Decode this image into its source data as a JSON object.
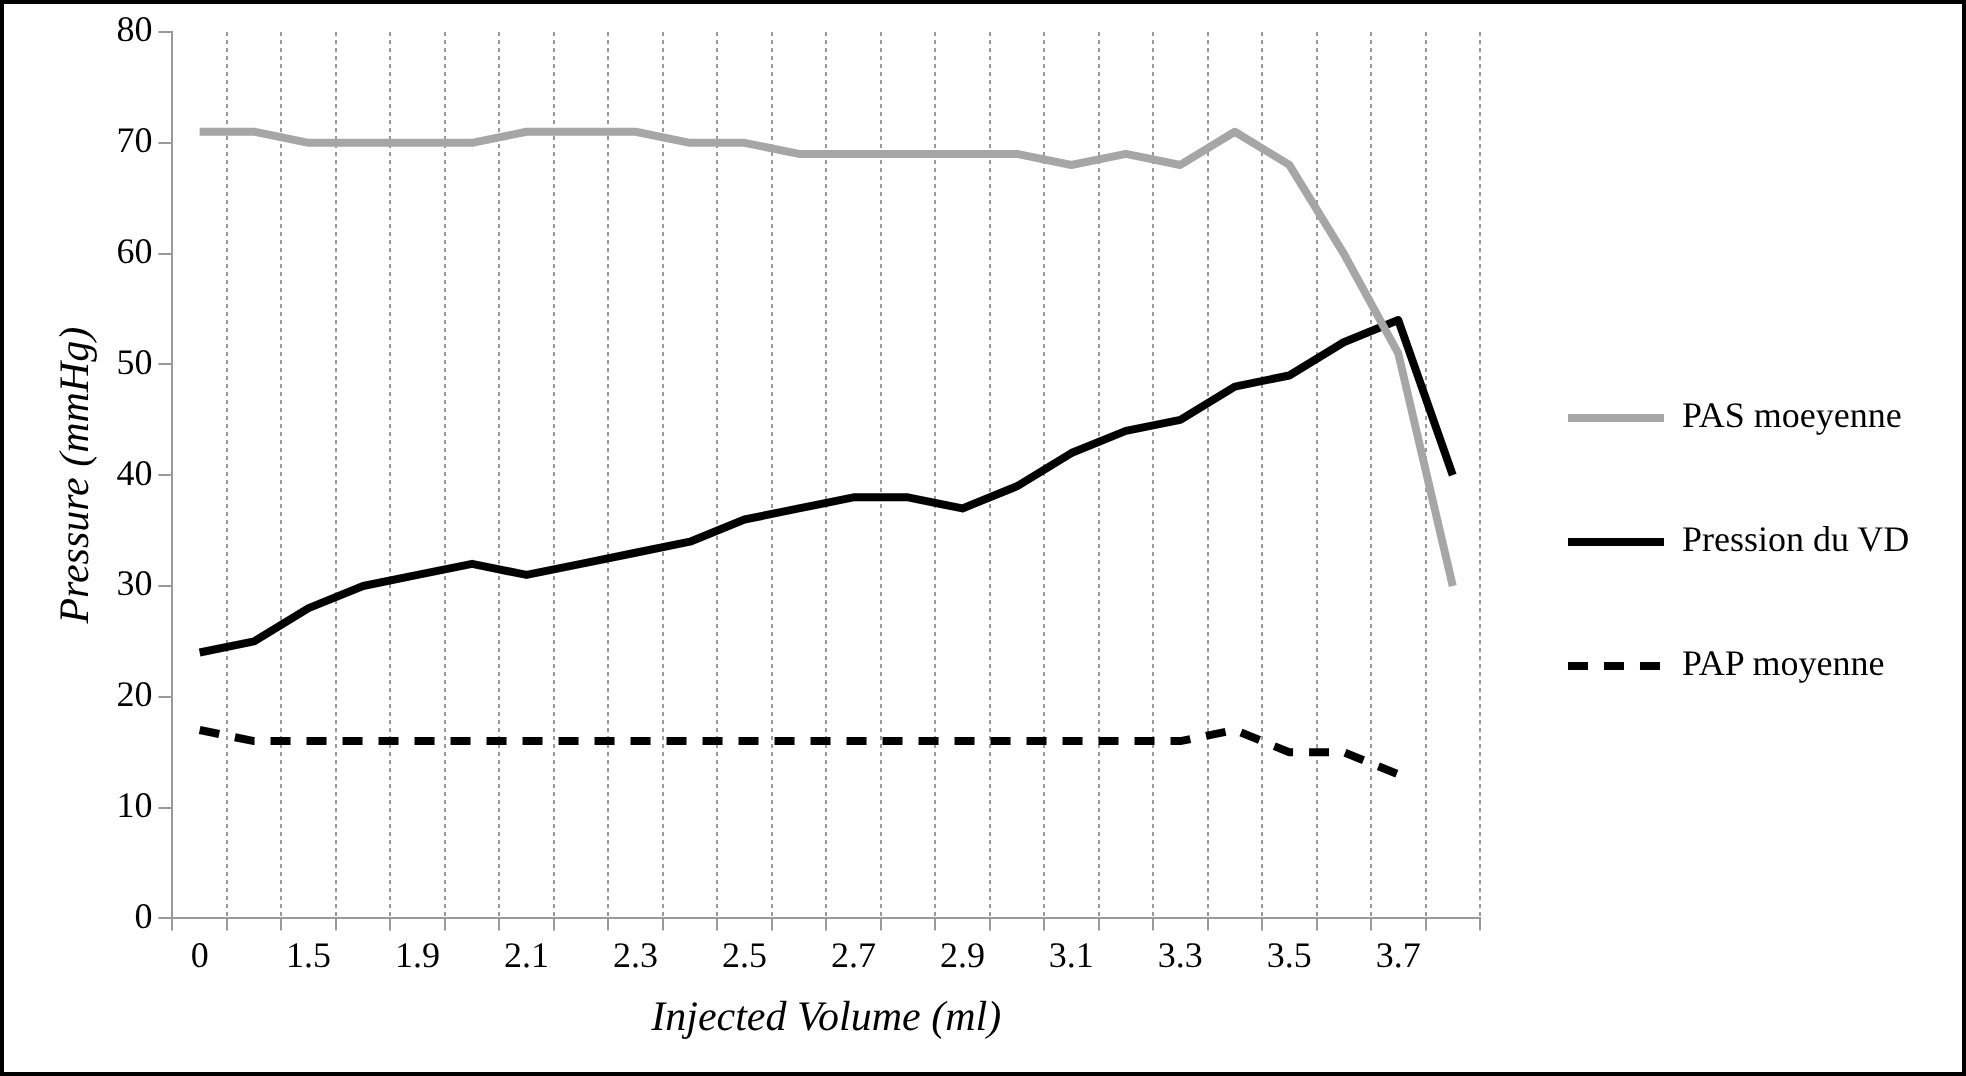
{
  "chart_data": {
    "type": "line",
    "xlabel": "Injected Volume (ml)",
    "ylabel": "Pressure (mmHg)",
    "categories": [
      "0",
      null,
      "1.5",
      null,
      "1.9",
      null,
      "2.1",
      null,
      "2.3",
      null,
      "2.5",
      null,
      "2.7",
      null,
      "2.9",
      null,
      "3.1",
      null,
      "3.3",
      null,
      "3.5",
      null,
      "3.7",
      null
    ],
    "ylim": [
      0,
      80
    ],
    "yticks": [
      0,
      10,
      20,
      30,
      40,
      50,
      60,
      70,
      80
    ],
    "grid": "x",
    "legend": "right",
    "marker": "none",
    "series": [
      {
        "name": "PAS moeyenne",
        "color": "#a6a6a6",
        "line_style": "solid",
        "values": [
          71,
          71,
          70,
          70,
          70,
          70,
          71,
          71,
          71,
          70,
          70,
          69,
          69,
          69,
          69,
          69,
          68,
          69,
          68,
          71,
          68,
          60,
          51,
          30
        ]
      },
      {
        "name": "Pression du VD",
        "color": "#000000",
        "line_style": "solid",
        "values": [
          24,
          25,
          28,
          30,
          31,
          32,
          31,
          32,
          33,
          34,
          36,
          37,
          38,
          38,
          37,
          39,
          42,
          44,
          45,
          48,
          49,
          52,
          54,
          40
        ]
      },
      {
        "name": "PAP moyenne",
        "color": "#000000",
        "line_style": "dashed",
        "values": [
          17,
          16,
          16,
          16,
          16,
          16,
          16,
          16,
          16,
          16,
          16,
          16,
          16,
          16,
          16,
          16,
          16,
          16,
          16,
          17,
          15,
          15,
          13,
          null
        ]
      }
    ]
  }
}
